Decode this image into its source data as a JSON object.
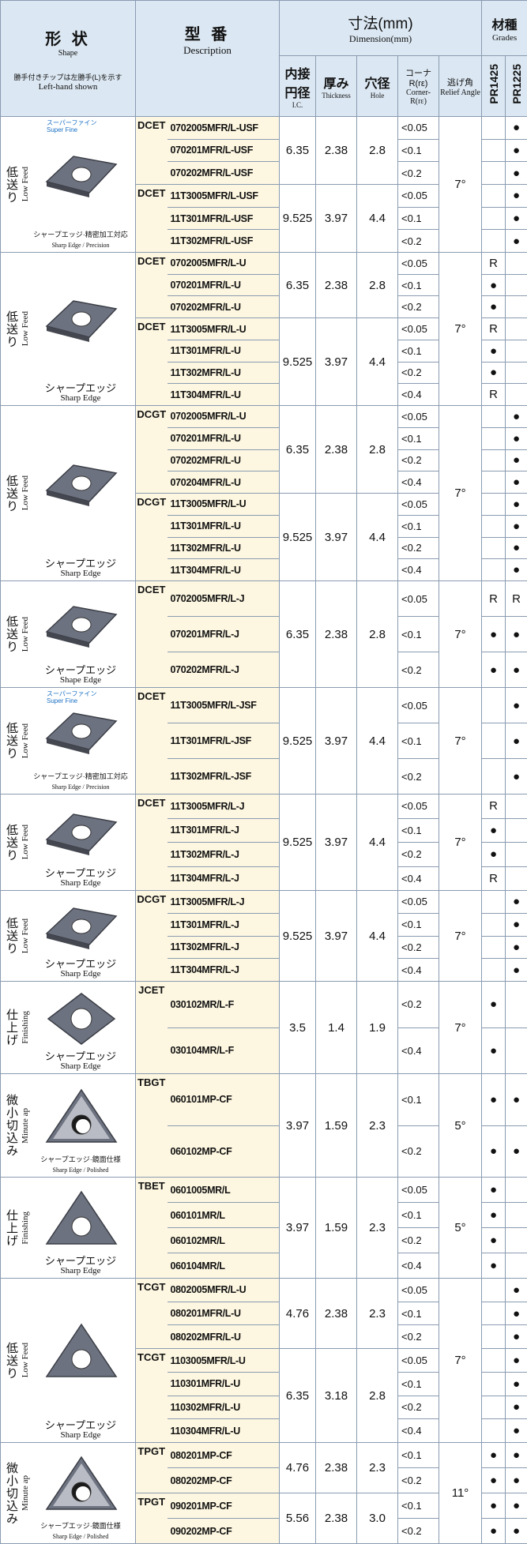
{
  "header": {
    "shape": {
      "title": "形 状",
      "subtitle": "Shape",
      "note": "勝手付きチップは左勝手(L)を示す",
      "note_en": "Left-hand shown"
    },
    "description": {
      "title": "型 番",
      "subtitle": "Description"
    },
    "dimension": {
      "title": "寸法(mm)",
      "subtitle": "Dimension(mm)",
      "columns": [
        {
          "title": "内接円径",
          "subtitle": "I.C."
        },
        {
          "title": "厚み",
          "subtitle": "Thickness"
        },
        {
          "title": "穴径",
          "subtitle": "Hole"
        },
        {
          "title": "コーナR(rε)",
          "subtitle": "Corner-R(rε)"
        },
        {
          "title": "逃げ角",
          "subtitle": "Relief Angle"
        }
      ]
    },
    "grades": {
      "title": "材種",
      "subtitle": "Grades",
      "columns": [
        "PR1425",
        "PR1225"
      ]
    }
  },
  "blocks": [
    {
      "tag": "スーパーファイン",
      "tag_en": "Super Fine",
      "feed": "低送り",
      "feed_en": "Low Feed",
      "edge": "シャープエッジ·精密加工対応",
      "edge_en": "Sharp Edge / Precision",
      "relief": "7°",
      "groups": [
        {
          "prefix": "DCET",
          "ic": "6.35",
          "thickness": "2.38",
          "hole": "2.8",
          "rows": [
            {
              "model": "0702005MFR/L-USF",
              "corner": "<0.05",
              "grades": [
                null,
                "●"
              ]
            },
            {
              "model": "070201MFR/L-USF",
              "corner": "<0.1",
              "grades": [
                null,
                "●"
              ]
            },
            {
              "model": "070202MFR/L-USF",
              "corner": "<0.2",
              "grades": [
                null,
                "●"
              ]
            }
          ]
        },
        {
          "prefix": "DCET",
          "ic": "9.525",
          "thickness": "3.97",
          "hole": "4.4",
          "rows": [
            {
              "model": "11T3005MFR/L-USF",
              "corner": "<0.05",
              "grades": [
                null,
                "●"
              ]
            },
            {
              "model": "11T301MFR/L-USF",
              "corner": "<0.1",
              "grades": [
                null,
                "●"
              ]
            },
            {
              "model": "11T302MFR/L-USF",
              "corner": "<0.2",
              "grades": [
                null,
                "●"
              ]
            }
          ]
        }
      ]
    },
    {
      "feed": "低送り",
      "feed_en": "Low Feed",
      "edge": "シャープエッジ",
      "edge_en": "Sharp Edge",
      "relief": "7°",
      "groups": [
        {
          "prefix": "DCET",
          "ic": "6.35",
          "thickness": "2.38",
          "hole": "2.8",
          "rows": [
            {
              "model": "0702005MFR/L-U",
              "corner": "<0.05",
              "grades": [
                "R",
                null
              ]
            },
            {
              "model": "070201MFR/L-U",
              "corner": "<0.1",
              "grades": [
                "●",
                null
              ]
            },
            {
              "model": "070202MFR/L-U",
              "corner": "<0.2",
              "grades": [
                "●",
                null
              ]
            }
          ]
        },
        {
          "prefix": "DCET",
          "ic": "9.525",
          "thickness": "3.97",
          "hole": "4.4",
          "rows": [
            {
              "model": "11T3005MFR/L-U",
              "corner": "<0.05",
              "grades": [
                "R",
                null
              ]
            },
            {
              "model": "11T301MFR/L-U",
              "corner": "<0.1",
              "grades": [
                "●",
                null
              ]
            },
            {
              "model": "11T302MFR/L-U",
              "corner": "<0.2",
              "grades": [
                "●",
                null
              ]
            },
            {
              "model": "11T304MFR/L-U",
              "corner": "<0.4",
              "grades": [
                "R",
                null
              ]
            }
          ]
        }
      ]
    },
    {
      "feed": "低送り",
      "feed_en": "Low Feed",
      "edge": "シャープエッジ",
      "edge_en": "Sharp Edge",
      "relief": "7°",
      "groups": [
        {
          "prefix": "DCGT",
          "ic": "6.35",
          "thickness": "2.38",
          "hole": "2.8",
          "rows": [
            {
              "model": "0702005MFR/L-U",
              "corner": "<0.05",
              "grades": [
                null,
                "●"
              ]
            },
            {
              "model": "070201MFR/L-U",
              "corner": "<0.1",
              "grades": [
                null,
                "●"
              ]
            },
            {
              "model": "070202MFR/L-U",
              "corner": "<0.2",
              "grades": [
                null,
                "●"
              ]
            },
            {
              "model": "070204MFR/L-U",
              "corner": "<0.4",
              "grades": [
                null,
                "●"
              ]
            }
          ]
        },
        {
          "prefix": "DCGT",
          "ic": "9.525",
          "thickness": "3.97",
          "hole": "4.4",
          "rows": [
            {
              "model": "11T3005MFR/L-U",
              "corner": "<0.05",
              "grades": [
                null,
                "●"
              ]
            },
            {
              "model": "11T301MFR/L-U",
              "corner": "<0.1",
              "grades": [
                null,
                "●"
              ]
            },
            {
              "model": "11T302MFR/L-U",
              "corner": "<0.2",
              "grades": [
                null,
                "●"
              ]
            },
            {
              "model": "11T304MFR/L-U",
              "corner": "<0.4",
              "grades": [
                null,
                "●"
              ]
            }
          ]
        }
      ]
    },
    {
      "feed": "低送り",
      "feed_en": "Low Feed",
      "edge": "シャープエッジ",
      "edge_en": "Shape Edge",
      "relief": "7°",
      "groups": [
        {
          "prefix": "DCET",
          "ic": "6.35",
          "thickness": "2.38",
          "hole": "2.8",
          "rows": [
            {
              "model": "0702005MFR/L-J",
              "corner": "<0.05",
              "grades": [
                "R",
                "R"
              ]
            },
            {
              "model": "070201MFR/L-J",
              "corner": "<0.1",
              "grades": [
                "●",
                "●"
              ]
            },
            {
              "model": "070202MFR/L-J",
              "corner": "<0.2",
              "grades": [
                "●",
                "●"
              ]
            }
          ]
        }
      ]
    },
    {
      "tag": "スーパーファイン",
      "tag_en": "Super Fine",
      "feed": "低送り",
      "feed_en": "Low Feed",
      "edge": "シャープエッジ·精密加工対応",
      "edge_en": "Sharp Edge / Precision",
      "relief": "7°",
      "groups": [
        {
          "prefix": "DCET",
          "ic": "9.525",
          "thickness": "3.97",
          "hole": "4.4",
          "rows": [
            {
              "model": "11T3005MFR/L-JSF",
              "corner": "<0.05",
              "grades": [
                null,
                "●"
              ]
            },
            {
              "model": "11T301MFR/L-JSF",
              "corner": "<0.1",
              "grades": [
                null,
                "●"
              ]
            },
            {
              "model": "11T302MFR/L-JSF",
              "corner": "<0.2",
              "grades": [
                null,
                "●"
              ]
            }
          ]
        }
      ]
    },
    {
      "feed": "低送り",
      "feed_en": "Low Feed",
      "edge": "シャープエッジ",
      "edge_en": "Sharp Edge",
      "relief": "7°",
      "groups": [
        {
          "prefix": "DCET",
          "ic": "9.525",
          "thickness": "3.97",
          "hole": "4.4",
          "rows": [
            {
              "model": "11T3005MFR/L-J",
              "corner": "<0.05",
              "grades": [
                "R",
                null
              ]
            },
            {
              "model": "11T301MFR/L-J",
              "corner": "<0.1",
              "grades": [
                "●",
                null
              ]
            },
            {
              "model": "11T302MFR/L-J",
              "corner": "<0.2",
              "grades": [
                "●",
                null
              ]
            },
            {
              "model": "11T304MFR/L-J",
              "corner": "<0.4",
              "grades": [
                "R",
                null
              ]
            }
          ]
        }
      ]
    },
    {
      "feed": "低送り",
      "feed_en": "Low Feed",
      "edge": "シャープエッジ",
      "edge_en": "Sharp Edge",
      "relief": "7°",
      "groups": [
        {
          "prefix": "DCGT",
          "ic": "9.525",
          "thickness": "3.97",
          "hole": "4.4",
          "rows": [
            {
              "model": "11T3005MFR/L-J",
              "corner": "<0.05",
              "grades": [
                null,
                "●"
              ]
            },
            {
              "model": "11T301MFR/L-J",
              "corner": "<0.1",
              "grades": [
                null,
                "●"
              ]
            },
            {
              "model": "11T302MFR/L-J",
              "corner": "<0.2",
              "grades": [
                null,
                "●"
              ]
            },
            {
              "model": "11T304MFR/L-J",
              "corner": "<0.4",
              "grades": [
                null,
                "●"
              ]
            }
          ]
        }
      ]
    },
    {
      "feed": "仕上げ",
      "feed_en": "Finishing",
      "edge": "シャープエッジ",
      "edge_en": "Sharp Edge",
      "relief": "7°",
      "groups": [
        {
          "prefix": "JCET",
          "ic": "3.5",
          "thickness": "1.4",
          "hole": "1.9",
          "rows": [
            {
              "model": "030102MR/L-F",
              "corner": "<0.2",
              "grades": [
                "●",
                null
              ]
            },
            {
              "model": "030104MR/L-F",
              "corner": "<0.4",
              "grades": [
                "●",
                null
              ]
            }
          ]
        }
      ]
    },
    {
      "feed": "微小切込み",
      "feed_en": "Minute ap",
      "edge": "シャープエッジ·鏡面仕様",
      "edge_en": "Sharp Edge / Polished",
      "relief": "5°",
      "groups": [
        {
          "prefix": "TBGT",
          "ic": "3.97",
          "thickness": "1.59",
          "hole": "2.3",
          "rows": [
            {
              "model": "060101MP-CF",
              "corner": "<0.1",
              "grades": [
                "●",
                "●"
              ]
            },
            {
              "model": "060102MP-CF",
              "corner": "<0.2",
              "grades": [
                "●",
                "●"
              ]
            }
          ]
        }
      ]
    },
    {
      "feed": "仕上げ",
      "feed_en": "Finishing",
      "edge": "シャープエッジ",
      "edge_en": "Sharp Edge",
      "relief": "5°",
      "groups": [
        {
          "prefix": "TBET",
          "ic": "3.97",
          "thickness": "1.59",
          "hole": "2.3",
          "rows": [
            {
              "model": "0601005MR/L",
              "corner": "<0.05",
              "grades": [
                "●",
                null
              ]
            },
            {
              "model": "060101MR/L",
              "corner": "<0.1",
              "grades": [
                "●",
                null
              ]
            },
            {
              "model": "060102MR/L",
              "corner": "<0.2",
              "grades": [
                "●",
                null
              ]
            },
            {
              "model": "060104MR/L",
              "corner": "<0.4",
              "grades": [
                "●",
                null
              ]
            }
          ]
        }
      ]
    },
    {
      "feed": "低送り",
      "feed_en": "Low Feed",
      "edge": "シャープエッジ",
      "edge_en": "Sharp Edge",
      "relief": "7°",
      "groups": [
        {
          "prefix": "TCGT",
          "ic": "4.76",
          "thickness": "2.38",
          "hole": "2.3",
          "rows": [
            {
              "model": "0802005MFR/L-U",
              "corner": "<0.05",
              "grades": [
                null,
                "●"
              ]
            },
            {
              "model": "080201MFR/L-U",
              "corner": "<0.1",
              "grades": [
                null,
                "●"
              ]
            },
            {
              "model": "080202MFR/L-U",
              "corner": "<0.2",
              "grades": [
                null,
                "●"
              ]
            }
          ]
        },
        {
          "prefix": "TCGT",
          "ic": "6.35",
          "thickness": "3.18",
          "hole": "2.8",
          "rows": [
            {
              "model": "1103005MFR/L-U",
              "corner": "<0.05",
              "grades": [
                null,
                "●"
              ]
            },
            {
              "model": "110301MFR/L-U",
              "corner": "<0.1",
              "grades": [
                null,
                "●"
              ]
            },
            {
              "model": "110302MFR/L-U",
              "corner": "<0.2",
              "grades": [
                null,
                "●"
              ]
            },
            {
              "model": "110304MFR/L-U",
              "corner": "<0.4",
              "grades": [
                null,
                "●"
              ]
            }
          ]
        }
      ]
    },
    {
      "feed": "微小切込み",
      "feed_en": "Minute ap",
      "edge": "シャープエッジ·鏡面仕様",
      "edge_en": "Sharp Edge / Polished",
      "relief": "11°",
      "groups": [
        {
          "prefix": "TPGT",
          "ic": "4.76",
          "thickness": "2.38",
          "hole": "2.3",
          "rows": [
            {
              "model": "080201MP-CF",
              "corner": "<0.1",
              "grades": [
                "●",
                "●"
              ]
            },
            {
              "model": "080202MP-CF",
              "corner": "<0.2",
              "grades": [
                "●",
                "●"
              ]
            }
          ]
        },
        {
          "prefix": "TPGT",
          "ic": "5.56",
          "thickness": "2.38",
          "hole": "3.0",
          "rows": [
            {
              "model": "090201MP-CF",
              "corner": "<0.1",
              "grades": [
                "●",
                "●"
              ]
            },
            {
              "model": "090202MP-CF",
              "corner": "<0.2",
              "grades": [
                "●",
                "●"
              ]
            }
          ]
        }
      ]
    }
  ]
}
